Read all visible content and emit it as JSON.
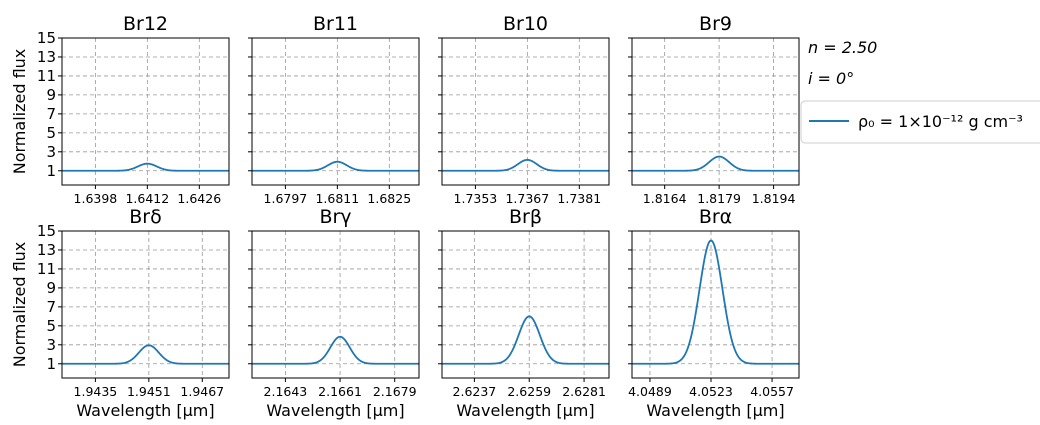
{
  "annotations": {
    "n_label": "n = 2.50",
    "i_label": "i = 0°"
  },
  "legend": {
    "entry_label": "ρ₀ = 1×10⁻¹² g cm⁻³",
    "color": "#1f77b4",
    "placement": "right"
  },
  "chart_data": [
    {
      "type": "line",
      "title": "Br12",
      "xlabel": "",
      "ylabel": "Normalized flux",
      "xlim": [
        1.6389,
        1.6434
      ],
      "ylim": [
        -0.5,
        15
      ],
      "xticks": [
        "1.6398",
        "1.6412",
        "1.6426"
      ],
      "yticks": [
        "1",
        "3",
        "5",
        "7",
        "9",
        "11",
        "13",
        "15"
      ],
      "center": 1.6412,
      "peak": 1.75,
      "fwhm": 0.0006,
      "grid": true,
      "series": [
        {
          "name": "ρ₀ = 1×10⁻¹² g cm⁻³"
        }
      ]
    },
    {
      "type": "line",
      "title": "Br11",
      "xlabel": "",
      "ylabel": "",
      "xlim": [
        1.6788,
        1.6833
      ],
      "ylim": [
        -0.5,
        15
      ],
      "xticks": [
        "1.6797",
        "1.6811",
        "1.6825"
      ],
      "yticks": [],
      "center": 1.6811,
      "peak": 1.95,
      "fwhm": 0.0006,
      "grid": true,
      "series": [
        {
          "name": "ρ₀ = 1×10⁻¹² g cm⁻³"
        }
      ]
    },
    {
      "type": "line",
      "title": "Br10",
      "xlabel": "",
      "ylabel": "",
      "xlim": [
        1.7344,
        1.7389
      ],
      "ylim": [
        -0.5,
        15
      ],
      "xticks": [
        "1.7353",
        "1.7367",
        "1.7381"
      ],
      "yticks": [],
      "center": 1.7367,
      "peak": 2.15,
      "fwhm": 0.0006,
      "grid": true,
      "series": [
        {
          "name": "ρ₀ = 1×10⁻¹² g cm⁻³"
        }
      ]
    },
    {
      "type": "line",
      "title": "Br9",
      "xlabel": "",
      "ylabel": "",
      "xlim": [
        1.8155,
        1.8201
      ],
      "ylim": [
        -0.5,
        15
      ],
      "xticks": [
        "1.8164",
        "1.8179",
        "1.8194"
      ],
      "yticks": [],
      "center": 1.8179,
      "peak": 2.5,
      "fwhm": 0.00065,
      "grid": true,
      "series": [
        {
          "name": "ρ₀ = 1×10⁻¹² g cm⁻³"
        }
      ]
    },
    {
      "type": "line",
      "title": "Brδ",
      "xlabel": "Wavelength [μm]",
      "ylabel": "Normalized flux",
      "xlim": [
        1.9425,
        1.9475
      ],
      "ylim": [
        -0.5,
        15
      ],
      "xticks": [
        "1.9435",
        "1.9451",
        "1.9467"
      ],
      "yticks": [
        "1",
        "3",
        "5",
        "7",
        "9",
        "11",
        "13",
        "15"
      ],
      "center": 1.9451,
      "peak": 2.95,
      "fwhm": 0.0007,
      "grid": true,
      "series": [
        {
          "name": "ρ₀ = 1×10⁻¹² g cm⁻³"
        }
      ]
    },
    {
      "type": "line",
      "title": "Brγ",
      "xlabel": "Wavelength [μm]",
      "ylabel": "",
      "xlim": [
        2.1632,
        2.1687
      ],
      "ylim": [
        -0.5,
        15
      ],
      "xticks": [
        "2.1643",
        "2.1661",
        "2.1679"
      ],
      "yticks": [],
      "center": 2.1661,
      "peak": 3.85,
      "fwhm": 0.00075,
      "grid": true,
      "series": [
        {
          "name": "ρ₀ = 1×10⁻¹² g cm⁻³"
        }
      ]
    },
    {
      "type": "line",
      "title": "Brβ",
      "xlabel": "Wavelength [μm]",
      "ylabel": "",
      "xlim": [
        2.6224,
        2.6291
      ],
      "ylim": [
        -0.5,
        15
      ],
      "xticks": [
        "2.6237",
        "2.6259",
        "2.6281"
      ],
      "yticks": [],
      "center": 2.6259,
      "peak": 6.0,
      "fwhm": 0.001,
      "grid": true,
      "series": [
        {
          "name": "ρ₀ = 1×10⁻¹² g cm⁻³"
        }
      ]
    },
    {
      "type": "line",
      "title": "Brα",
      "xlabel": "Wavelength [μm]",
      "ylabel": "",
      "xlim": [
        4.0479,
        4.0572
      ],
      "ylim": [
        -0.5,
        15
      ],
      "xticks": [
        "4.0489",
        "4.0523",
        "4.0557"
      ],
      "yticks": [],
      "center": 4.0523,
      "peak": 14.0,
      "fwhm": 0.0015,
      "grid": true,
      "series": [
        {
          "name": "ρ₀ = 1×10⁻¹² g cm⁻³"
        }
      ]
    }
  ]
}
